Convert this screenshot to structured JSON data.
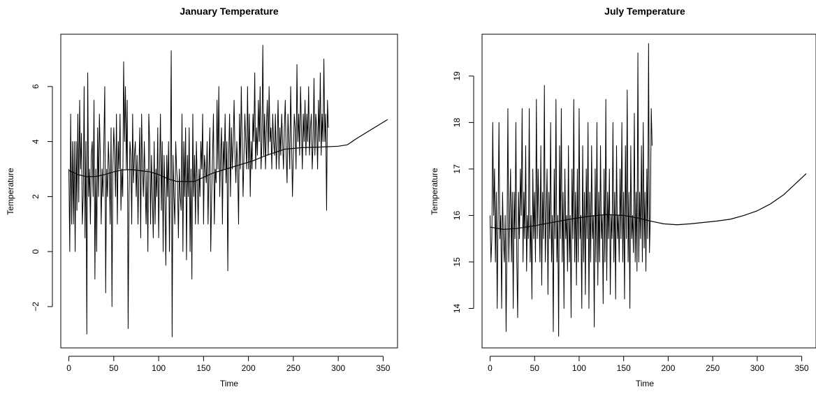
{
  "chart_data": [
    {
      "type": "line",
      "title": "January Temperature",
      "xlabel": "Time",
      "ylabel": "Temperature",
      "xlim": [
        -9,
        366
      ],
      "ylim": [
        -3.5,
        7.9
      ],
      "xticks": [
        0,
        50,
        100,
        150,
        200,
        250,
        300,
        350
      ],
      "yticks": [
        -2,
        0,
        2,
        4,
        6
      ],
      "grid": false,
      "series": [
        {
          "values": [
            3.0,
            0.0,
            5.0,
            1.0,
            4.0,
            1.0,
            4.0,
            0.0,
            4.0,
            1.5,
            5.0,
            1.8,
            5.5,
            3.0,
            4.3,
            1.0,
            2.0,
            6.0,
            0.5,
            4.0,
            -3.0,
            6.5,
            2.0,
            3.0,
            1.0,
            3.5,
            4.0,
            2.0,
            5.5,
            -1.0,
            3.0,
            0.0,
            4.5,
            2.0,
            5.0,
            3.5,
            1.0,
            3.0,
            2.0,
            4.0,
            6.0,
            -1.5,
            3.0,
            2.0,
            4.0,
            3.0,
            1.0,
            4.5,
            -2.0,
            3.0,
            4.5,
            3.5,
            2.0,
            5.0,
            1.0,
            4.0,
            3.0,
            5.0,
            1.5,
            3.0,
            2.0,
            6.9,
            4.0,
            6.0,
            3.0,
            5.5,
            -2.8,
            2.0,
            4.0,
            3.5,
            1.0,
            5.0,
            2.5,
            3.5,
            4.0,
            2.0,
            3.5,
            1.0,
            3.0,
            4.5,
            0.5,
            5.0,
            3.0,
            2.0,
            4.0,
            2.5,
            1.0,
            3.0,
            0.0,
            5.0,
            4.0,
            1.0,
            3.5,
            2.0,
            0.5,
            4.0,
            1.0,
            3.0,
            2.0,
            4.5,
            0.5,
            3.0,
            5.0,
            1.5,
            4.0,
            0.0,
            3.5,
            2.0,
            -0.5,
            3.5,
            2.0,
            4.0,
            0.0,
            3.0,
            7.3,
            -3.1,
            3.5,
            2.0,
            1.0,
            4.0,
            3.0,
            2.5,
            0.5,
            3.0,
            2.0,
            1.5,
            5.0,
            0.0,
            4.0,
            2.0,
            4.5,
            -0.3,
            3.5,
            2.0,
            4.5,
            0.0,
            3.0,
            -1.0,
            5.0,
            2.0,
            3.5,
            1.0,
            4.0,
            2.5,
            1.0,
            3.0,
            2.0,
            4.0,
            3.0,
            5.0,
            1.0,
            3.5,
            3.0,
            2.5,
            4.0,
            1.0,
            3.0,
            4.5,
            0.0,
            2.0,
            3.5,
            5.0,
            1.0,
            3.0,
            2.5,
            5.5,
            3.0,
            6.0,
            2.0,
            3.5,
            4.5,
            1.0,
            4.0,
            3.0,
            5.0,
            2.5,
            4.0,
            -0.7,
            3.5,
            5.0,
            2.0,
            4.5,
            3.0,
            4.0,
            5.5,
            3.5,
            2.5,
            4.0,
            3.0,
            1.0,
            5.0,
            3.0,
            6.0,
            4.0,
            2.0,
            3.5,
            5.0,
            4.0,
            3.0,
            6.0,
            3.0,
            5.0,
            2.0,
            4.0,
            3.0,
            5.0,
            4.0,
            6.5,
            3.0,
            4.5,
            3.5,
            5.5,
            4.0,
            6.0,
            3.0,
            4.0,
            7.5,
            3.5,
            5.0,
            3.0,
            4.5,
            5.5,
            3.5,
            6.0,
            4.0,
            4.5,
            3.0,
            5.0,
            4.0,
            3.5,
            5.0,
            3.0,
            4.0,
            5.5,
            3.0,
            4.5,
            3.5,
            5.0,
            4.0,
            3.0,
            4.5,
            5.5,
            3.5,
            2.5,
            5.0,
            4.0,
            3.0,
            6.0,
            4.0,
            2.0,
            3.5,
            5.0,
            4.5,
            3.0,
            6.8,
            4.0,
            5.0,
            3.5,
            6.0,
            4.5,
            3.0,
            5.0,
            4.0,
            5.5,
            3.5,
            5.0,
            4.0,
            6.0,
            3.5,
            4.5,
            5.0,
            3.0,
            4.0,
            6.3,
            3.5,
            5.0,
            4.5,
            3.0,
            5.5,
            4.0,
            6.5,
            3.5,
            5.0,
            4.0,
            7.0,
            4.0,
            5.0,
            1.5,
            5.5,
            4.5
          ],
          "smooth": [
            2.95,
            2.8,
            2.72,
            2.73,
            2.8,
            2.9,
            2.97,
            2.98,
            2.94,
            2.9,
            2.8,
            2.65,
            2.55,
            2.55,
            2.7,
            2.85,
            3.0,
            3.15,
            3.3,
            3.5,
            3.72,
            3.78,
            3.8,
            3.83,
            3.88,
            4.1,
            4.5,
            4.8
          ],
          "smooth_x": [
            0,
            10,
            20,
            30,
            40,
            50,
            60,
            70,
            80,
            90,
            100,
            110,
            120,
            140,
            150,
            160,
            175,
            190,
            205,
            220,
            240,
            260,
            280,
            300,
            310,
            320,
            340,
            355
          ]
        }
      ]
    },
    {
      "type": "line",
      "title": "July Temperature",
      "xlabel": "Time",
      "ylabel": "Temperature",
      "xlim": [
        -9,
        366
      ],
      "ylim": [
        13.15,
        19.9
      ],
      "xticks": [
        0,
        50,
        100,
        150,
        200,
        250,
        300,
        350
      ],
      "yticks": [
        14,
        15,
        16,
        17,
        18,
        19
      ],
      "grid": false,
      "series": [
        {
          "values": [
            16.0,
            15.0,
            15.5,
            18.0,
            16.0,
            17.0,
            15.0,
            16.5,
            14.0,
            16.0,
            18.0,
            15.5,
            16.0,
            14.0,
            16.5,
            15.5,
            15.0,
            16.0,
            13.5,
            15.5,
            18.3,
            15.0,
            16.0,
            17.0,
            15.0,
            16.5,
            14.0,
            16.5,
            15.5,
            18.0,
            15.0,
            13.8,
            16.5,
            15.5,
            17.0,
            16.0,
            18.3,
            15.0,
            16.5,
            15.5,
            17.5,
            14.8,
            16.0,
            15.5,
            18.3,
            15.0,
            16.0,
            14.2,
            17.0,
            15.5,
            16.5,
            15.0,
            18.5,
            15.5,
            17.0,
            16.0,
            15.0,
            17.5,
            14.5,
            16.5,
            15.5,
            18.8,
            15.0,
            16.0,
            17.0,
            14.3,
            16.5,
            15.5,
            18.0,
            15.0,
            16.0,
            13.5,
            17.0,
            15.5,
            18.5,
            15.0,
            16.0,
            13.4,
            17.5,
            15.5,
            18.3,
            15.0,
            16.5,
            14.0,
            17.0,
            15.5,
            16.0,
            14.8,
            17.5,
            15.0,
            16.0,
            13.8,
            17.0,
            15.5,
            18.5,
            15.0,
            16.5,
            14.5,
            17.0,
            15.0,
            18.3,
            15.5,
            16.0,
            14.0,
            17.5,
            15.0,
            16.5,
            14.3,
            17.0,
            15.5,
            18.0,
            14.0,
            16.5,
            15.0,
            17.5,
            15.5,
            16.0,
            13.6,
            17.0,
            15.0,
            18.0,
            14.5,
            16.5,
            15.0,
            17.5,
            15.5,
            16.0,
            14.1,
            17.0,
            15.0,
            18.5,
            14.6,
            16.5,
            15.5,
            17.0,
            14.3,
            16.0,
            15.5,
            18.0,
            15.0,
            16.5,
            14.2,
            17.5,
            15.5,
            16.0,
            15.0,
            17.0,
            15.5,
            18.0,
            15.0,
            16.5,
            14.2,
            17.5,
            15.5,
            18.7,
            15.0,
            16.5,
            14.0,
            17.5,
            15.5,
            16.0,
            15.2,
            18.2,
            15.0,
            16.5,
            14.8,
            19.5,
            15.0,
            16.5,
            15.5,
            17.5,
            15.0,
            18.0,
            15.3,
            16.5,
            14.8,
            17.0,
            15.5,
            19.7,
            15.2,
            16.0,
            18.3,
            17.5
          ],
          "smooth": [
            15.75,
            15.7,
            15.72,
            15.78,
            15.85,
            15.92,
            15.98,
            16.02,
            16.0,
            15.95,
            15.88,
            15.82,
            15.8,
            15.82,
            15.85,
            15.88,
            15.92,
            16.0,
            16.1,
            16.25,
            16.45,
            16.9
          ],
          "smooth_x": [
            0,
            15,
            30,
            50,
            70,
            90,
            110,
            130,
            150,
            165,
            180,
            195,
            210,
            225,
            240,
            255,
            270,
            285,
            300,
            315,
            330,
            355
          ]
        }
      ]
    }
  ]
}
